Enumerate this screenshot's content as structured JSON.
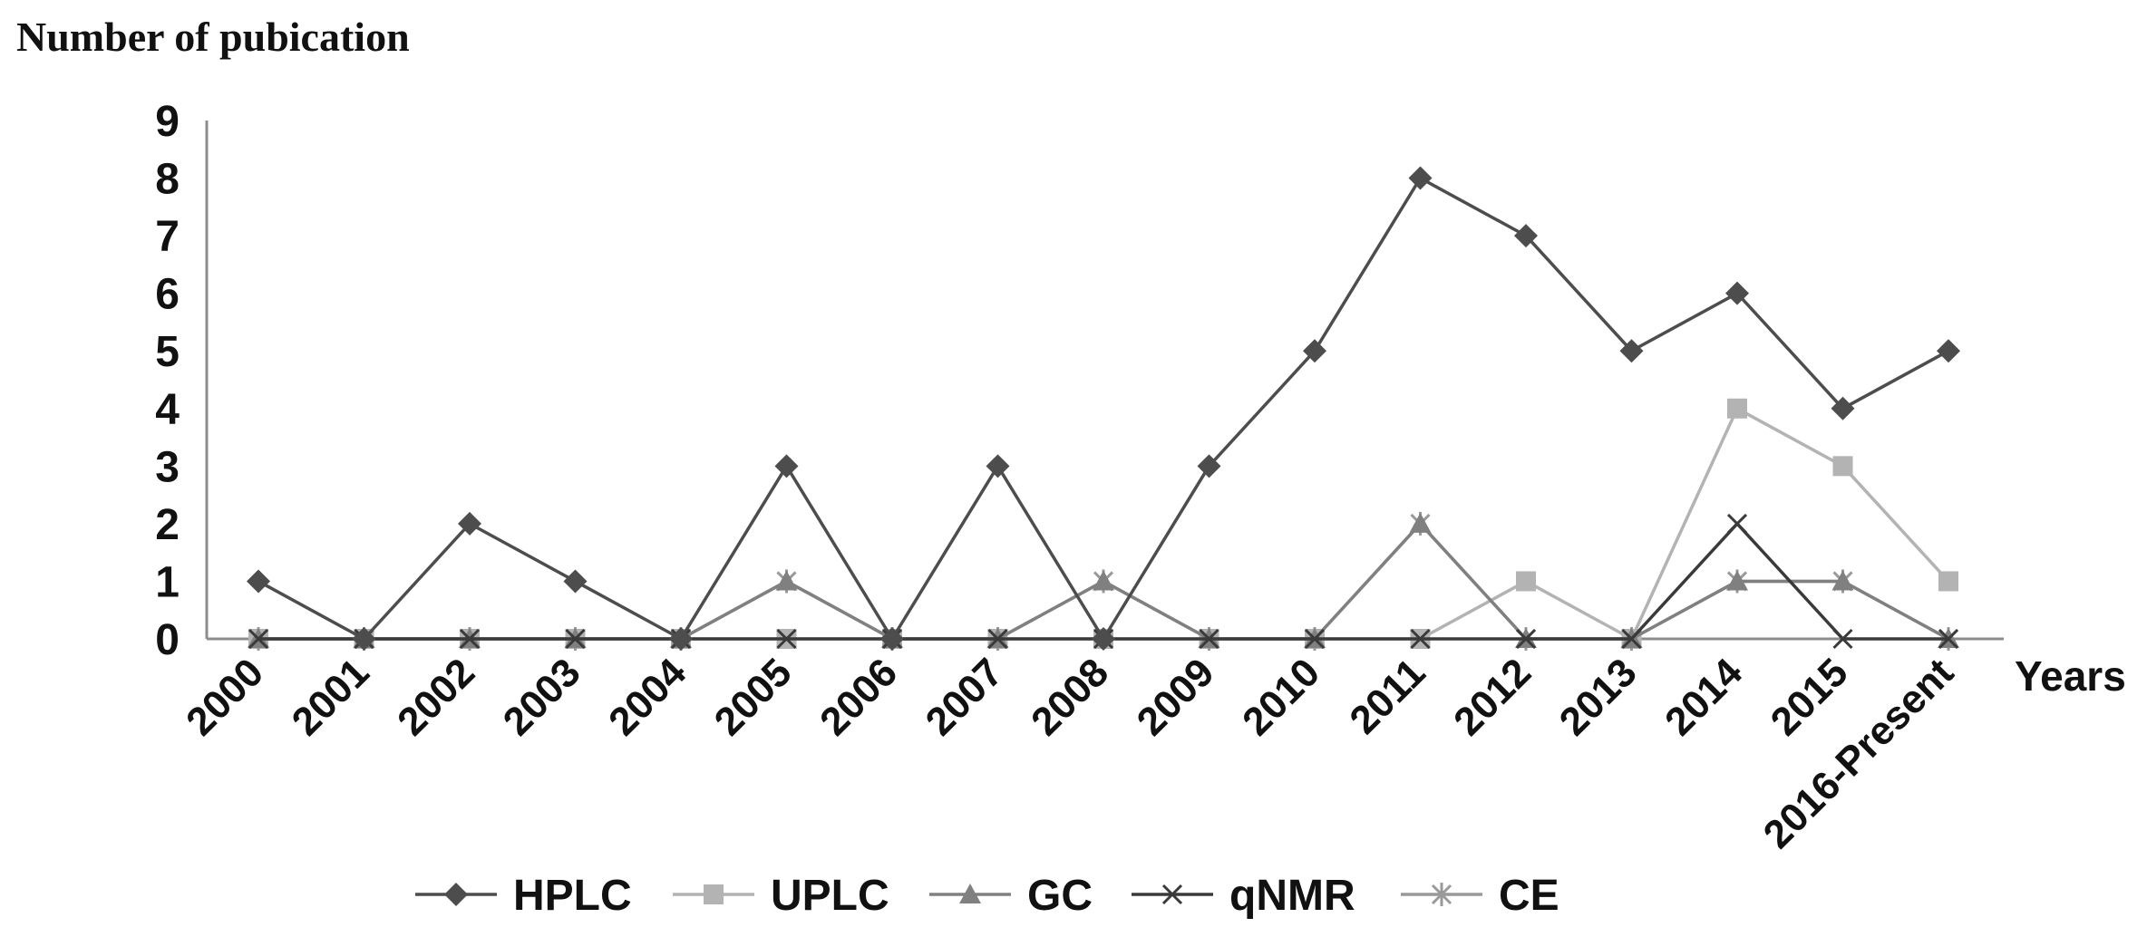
{
  "chart_data": {
    "type": "line",
    "title": "",
    "ylabel": "Number of pubication",
    "xlabel": "Years",
    "ylim": [
      0,
      9
    ],
    "yticks": [
      0,
      1,
      2,
      3,
      4,
      5,
      6,
      7,
      8,
      9
    ],
    "grid": false,
    "legend_position": "bottom",
    "categories": [
      "2000",
      "2001",
      "2002",
      "2003",
      "2004",
      "2005",
      "2006",
      "2007",
      "2008",
      "2009",
      "2010",
      "2011",
      "2012",
      "2013",
      "2014",
      "2015",
      "2016-Present"
    ],
    "series": [
      {
        "name": "HPLC",
        "marker": "diamond",
        "color": "#4d4d4d",
        "values": [
          1,
          0,
          2,
          1,
          0,
          3,
          0,
          3,
          0,
          3,
          5,
          8,
          7,
          5,
          6,
          4,
          5
        ]
      },
      {
        "name": "UPLC",
        "marker": "square",
        "color": "#b3b3b3",
        "values": [
          0,
          0,
          0,
          0,
          0,
          0,
          0,
          0,
          0,
          0,
          0,
          0,
          1,
          0,
          4,
          3,
          1
        ]
      },
      {
        "name": "GC",
        "marker": "triangle",
        "color": "#808080",
        "values": [
          0,
          0,
          0,
          0,
          0,
          1,
          0,
          0,
          1,
          0,
          0,
          2,
          0,
          0,
          1,
          1,
          0
        ]
      },
      {
        "name": "qNMR",
        "marker": "x",
        "color": "#3a3a3a",
        "values": [
          0,
          0,
          0,
          0,
          0,
          0,
          0,
          0,
          0,
          0,
          0,
          0,
          0,
          0,
          2,
          0,
          0
        ]
      },
      {
        "name": "CE",
        "marker": "star",
        "color": "#999999",
        "values": [
          0,
          0,
          0,
          0,
          0,
          1,
          0,
          0,
          1,
          0,
          0,
          2,
          0,
          0,
          1,
          1,
          0
        ]
      }
    ]
  }
}
